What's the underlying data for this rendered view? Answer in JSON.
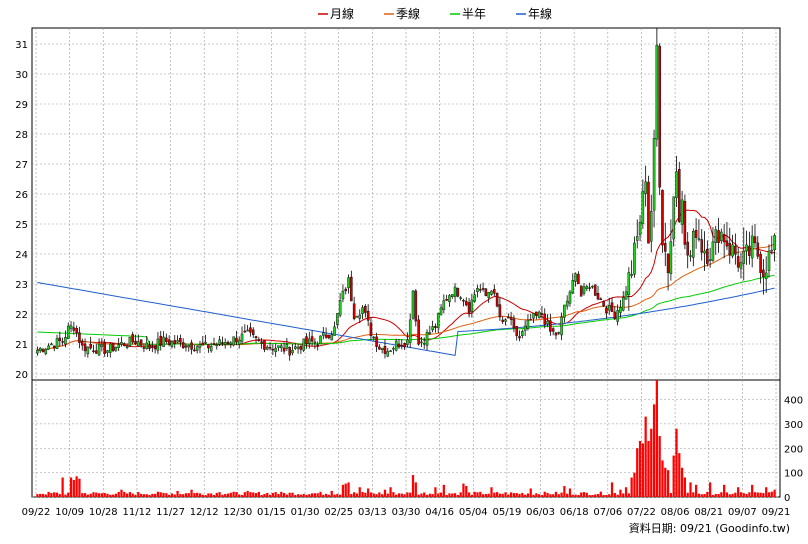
{
  "legend": [
    {
      "name": "月線",
      "color": "#cc0000"
    },
    {
      "name": "季線",
      "color": "#e06010"
    },
    {
      "name": "半年",
      "color": "#00cc00"
    },
    {
      "name": "年線",
      "color": "#1f5fd0"
    }
  ],
  "footer": "資料日期: 09/21  (Goodinfo.tw)",
  "chart_data": {
    "type": "candlestick",
    "grid": true,
    "price_axis": {
      "min": 20,
      "max": 31,
      "ticks": [
        "20",
        "21",
        "22",
        "23",
        "24",
        "25",
        "26",
        "27",
        "28",
        "29",
        "30",
        "31"
      ]
    },
    "volume_axis": {
      "min": 0,
      "max": 400,
      "ticks": [
        "0",
        "100",
        "200",
        "300",
        "400"
      ]
    },
    "x_tick_labels": [
      "09/22",
      "10/09",
      "10/28",
      "11/12",
      "11/27",
      "12/12",
      "12/30",
      "01/15",
      "01/30",
      "02/25",
      "03/13",
      "03/30",
      "04/16",
      "05/04",
      "05/19",
      "06/03",
      "06/18",
      "07/06",
      "07/22",
      "08/06",
      "08/21",
      "09/07",
      "09/21"
    ],
    "close_anchors": [
      [
        0,
        20.8
      ],
      [
        5,
        21.0
      ],
      [
        9,
        21.1
      ],
      [
        11,
        21.5
      ],
      [
        13,
        21.6
      ],
      [
        16,
        20.9
      ],
      [
        25,
        20.8
      ],
      [
        30,
        21.0
      ],
      [
        35,
        21.1
      ],
      [
        40,
        20.9
      ],
      [
        45,
        21.1
      ],
      [
        52,
        21.0
      ],
      [
        60,
        20.9
      ],
      [
        68,
        21.1
      ],
      [
        75,
        21.3
      ],
      [
        80,
        21.0
      ],
      [
        85,
        20.9
      ],
      [
        90,
        20.8
      ],
      [
        95,
        21.0
      ],
      [
        100,
        21.1
      ],
      [
        103,
        21.3
      ],
      [
        106,
        21.5
      ],
      [
        108,
        22.4
      ],
      [
        111,
        23.1
      ],
      [
        113,
        22.0
      ],
      [
        116,
        22.2
      ],
      [
        119,
        21.4
      ],
      [
        122,
        20.9
      ],
      [
        125,
        20.8
      ],
      [
        128,
        21.0
      ],
      [
        132,
        21.1
      ],
      [
        134,
        22.8
      ],
      [
        136,
        21.0
      ],
      [
        139,
        21.3
      ],
      [
        142,
        21.6
      ],
      [
        145,
        22.4
      ],
      [
        148,
        22.8
      ],
      [
        151,
        22.7
      ],
      [
        154,
        22.2
      ],
      [
        157,
        22.9
      ],
      [
        160,
        22.6
      ],
      [
        162,
        22.9
      ],
      [
        164,
        22.2
      ],
      [
        166,
        21.6
      ],
      [
        168,
        21.9
      ],
      [
        170,
        21.4
      ],
      [
        172,
        21.2
      ],
      [
        176,
        21.8
      ],
      [
        180,
        22.0
      ],
      [
        183,
        21.4
      ],
      [
        186,
        21.3
      ],
      [
        188,
        22.3
      ],
      [
        190,
        22.6
      ],
      [
        192,
        23.5
      ],
      [
        194,
        22.6
      ],
      [
        197,
        23.0
      ],
      [
        200,
        22.6
      ],
      [
        203,
        22.2
      ],
      [
        206,
        22.0
      ],
      [
        209,
        22.5
      ],
      [
        212,
        23.5
      ],
      [
        214,
        24.5
      ],
      [
        216,
        25.8
      ],
      [
        217,
        26.7
      ],
      [
        218,
        24.5
      ],
      [
        219,
        25.5
      ],
      [
        220,
        27.5
      ],
      [
        221,
        30.9
      ],
      [
        222,
        26.6
      ],
      [
        223,
        24.6
      ],
      [
        225,
        23.6
      ],
      [
        226,
        24.5
      ],
      [
        227,
        25.9
      ],
      [
        228,
        26.9
      ],
      [
        229,
        25.5
      ],
      [
        230,
        26.2
      ],
      [
        231,
        24.1
      ],
      [
        233,
        23.9
      ],
      [
        235,
        24.9
      ],
      [
        237,
        24.3
      ],
      [
        239,
        24.1
      ],
      [
        241,
        24.2
      ],
      [
        243,
        24.8
      ],
      [
        245,
        24.6
      ],
      [
        247,
        24.2
      ],
      [
        249,
        24.0
      ],
      [
        251,
        23.6
      ],
      [
        253,
        23.9
      ],
      [
        255,
        24.2
      ],
      [
        257,
        24.0
      ],
      [
        259,
        23.5
      ],
      [
        261,
        23.9
      ],
      [
        263,
        24.2
      ]
    ],
    "volume_spikes": [
      [
        9,
        80
      ],
      [
        12,
        80
      ],
      [
        13,
        70
      ],
      [
        14,
        85
      ],
      [
        15,
        75
      ],
      [
        30,
        30
      ],
      [
        50,
        25
      ],
      [
        55,
        30
      ],
      [
        65,
        20
      ],
      [
        75,
        25
      ],
      [
        85,
        20
      ],
      [
        105,
        25
      ],
      [
        109,
        50
      ],
      [
        110,
        55
      ],
      [
        111,
        60
      ],
      [
        115,
        40
      ],
      [
        118,
        35
      ],
      [
        124,
        30
      ],
      [
        126,
        40
      ],
      [
        134,
        90
      ],
      [
        135,
        60
      ],
      [
        142,
        40
      ],
      [
        145,
        50
      ],
      [
        152,
        55
      ],
      [
        153,
        45
      ],
      [
        162,
        40
      ],
      [
        176,
        35
      ],
      [
        188,
        45
      ],
      [
        190,
        35
      ],
      [
        205,
        60
      ],
      [
        208,
        30
      ],
      [
        210,
        40
      ],
      [
        212,
        80
      ],
      [
        213,
        100
      ],
      [
        214,
        200
      ],
      [
        215,
        230
      ],
      [
        216,
        220
      ],
      [
        217,
        330
      ],
      [
        218,
        230
      ],
      [
        219,
        280
      ],
      [
        220,
        380
      ],
      [
        221,
        490
      ],
      [
        222,
        250
      ],
      [
        223,
        150
      ],
      [
        224,
        120
      ],
      [
        225,
        110
      ],
      [
        227,
        170
      ],
      [
        228,
        280
      ],
      [
        229,
        180
      ],
      [
        230,
        120
      ],
      [
        231,
        80
      ],
      [
        233,
        60
      ],
      [
        235,
        50
      ],
      [
        240,
        60
      ],
      [
        245,
        50
      ],
      [
        250,
        40
      ],
      [
        255,
        50
      ],
      [
        260,
        40
      ],
      [
        263,
        30
      ]
    ]
  }
}
